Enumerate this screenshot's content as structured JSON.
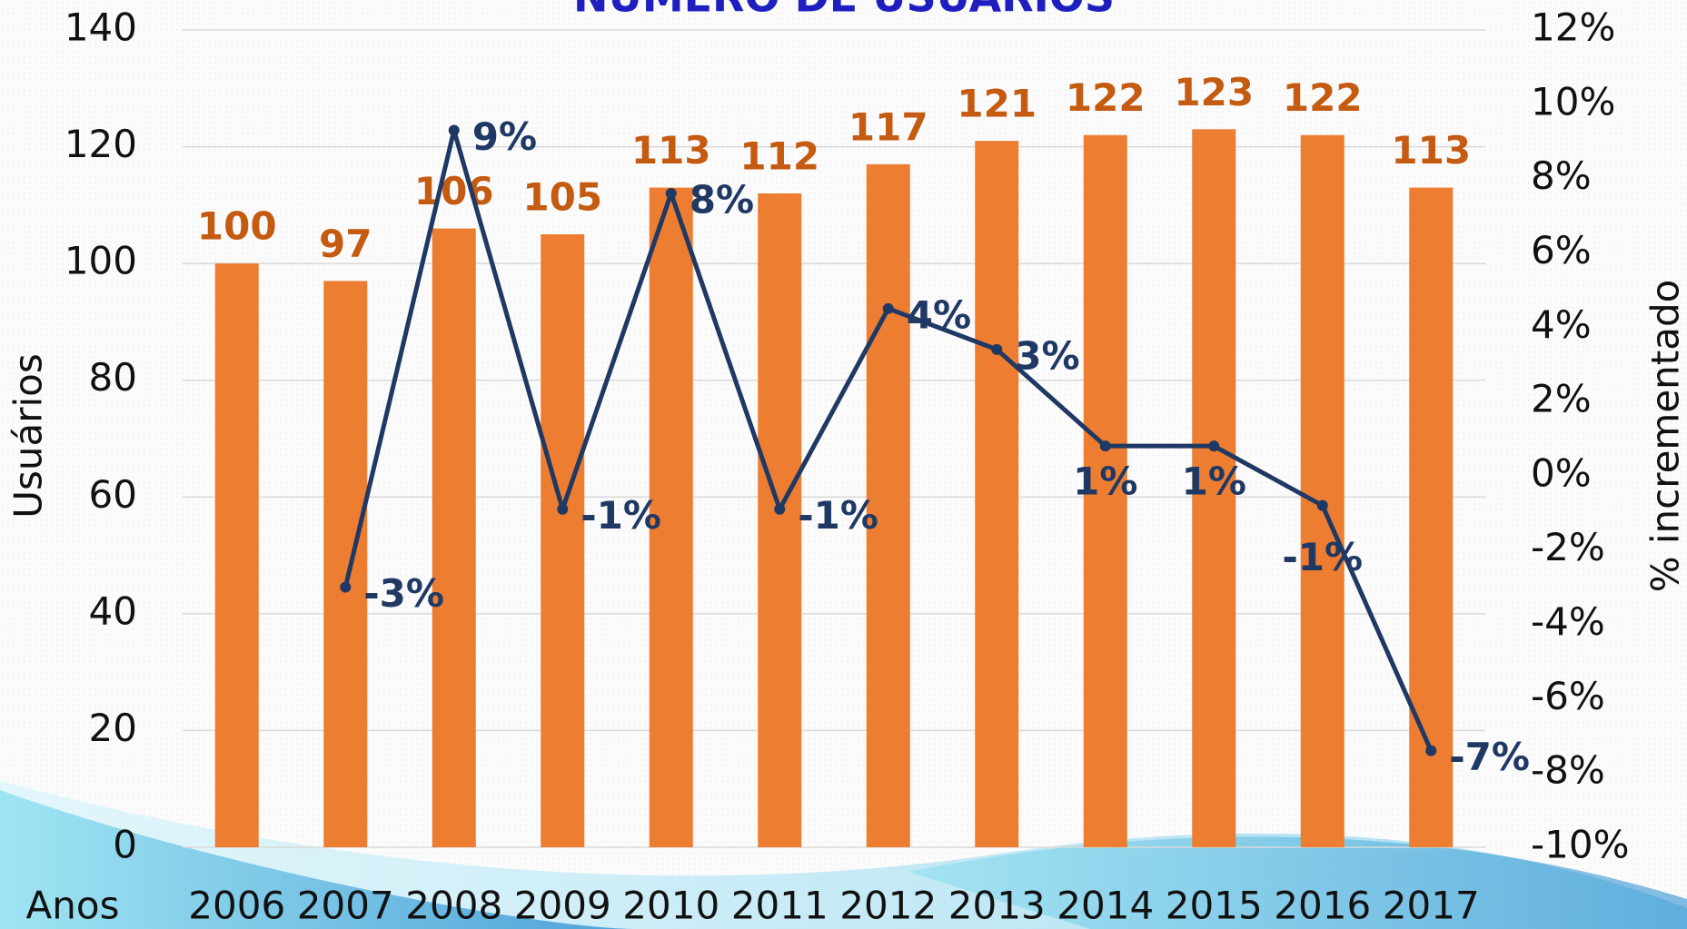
{
  "chart_data": {
    "type": "bar",
    "title": "NÚMERO DE USUÁRIOS",
    "x_label": "Anos",
    "y_label": "Usuários",
    "y2_label": "% incrementado",
    "categories": [
      "2006",
      "2007",
      "2008",
      "2009",
      "2010",
      "2011",
      "2012",
      "2013",
      "2014",
      "2015",
      "2016",
      "2017"
    ],
    "series": [
      {
        "name": "Usuários",
        "type": "bar",
        "color": "#ed7d31",
        "label_color": "#c55a11",
        "values": [
          100,
          97,
          106,
          105,
          113,
          112,
          117,
          121,
          122,
          123,
          122,
          113
        ]
      },
      {
        "name": "% incrementado",
        "type": "line",
        "axis": "y2",
        "color": "#1f3864",
        "values": [
          null,
          -3,
          9.3,
          -0.9,
          7.6,
          -0.9,
          4.5,
          3.4,
          0.8,
          0.8,
          -0.8,
          -7.4
        ],
        "value_labels": [
          null,
          "-3%",
          "9%",
          "-1%",
          "8%",
          "-1%",
          "4%",
          "3%",
          "1%",
          "1%",
          "-1%",
          "-7%"
        ]
      }
    ],
    "ylim": [
      0,
      140
    ],
    "yticks": [
      0,
      20,
      40,
      60,
      80,
      100,
      120,
      140
    ],
    "y2lim": [
      -10,
      12
    ],
    "y2ticks": [
      {
        "value": -10,
        "label": "-10%"
      },
      {
        "value": -8,
        "label": "-8%"
      },
      {
        "value": -6,
        "label": "-6%"
      },
      {
        "value": -4,
        "label": "-4%"
      },
      {
        "value": -2,
        "label": "-2%"
      },
      {
        "value": 0,
        "label": "0%"
      },
      {
        "value": 2,
        "label": "2%"
      },
      {
        "value": 4,
        "label": "4%"
      },
      {
        "value": 6,
        "label": "6%"
      },
      {
        "value": 8,
        "label": "8%"
      },
      {
        "value": 10,
        "label": "10%"
      },
      {
        "value": 12,
        "label": "12%"
      }
    ],
    "grid": true
  }
}
